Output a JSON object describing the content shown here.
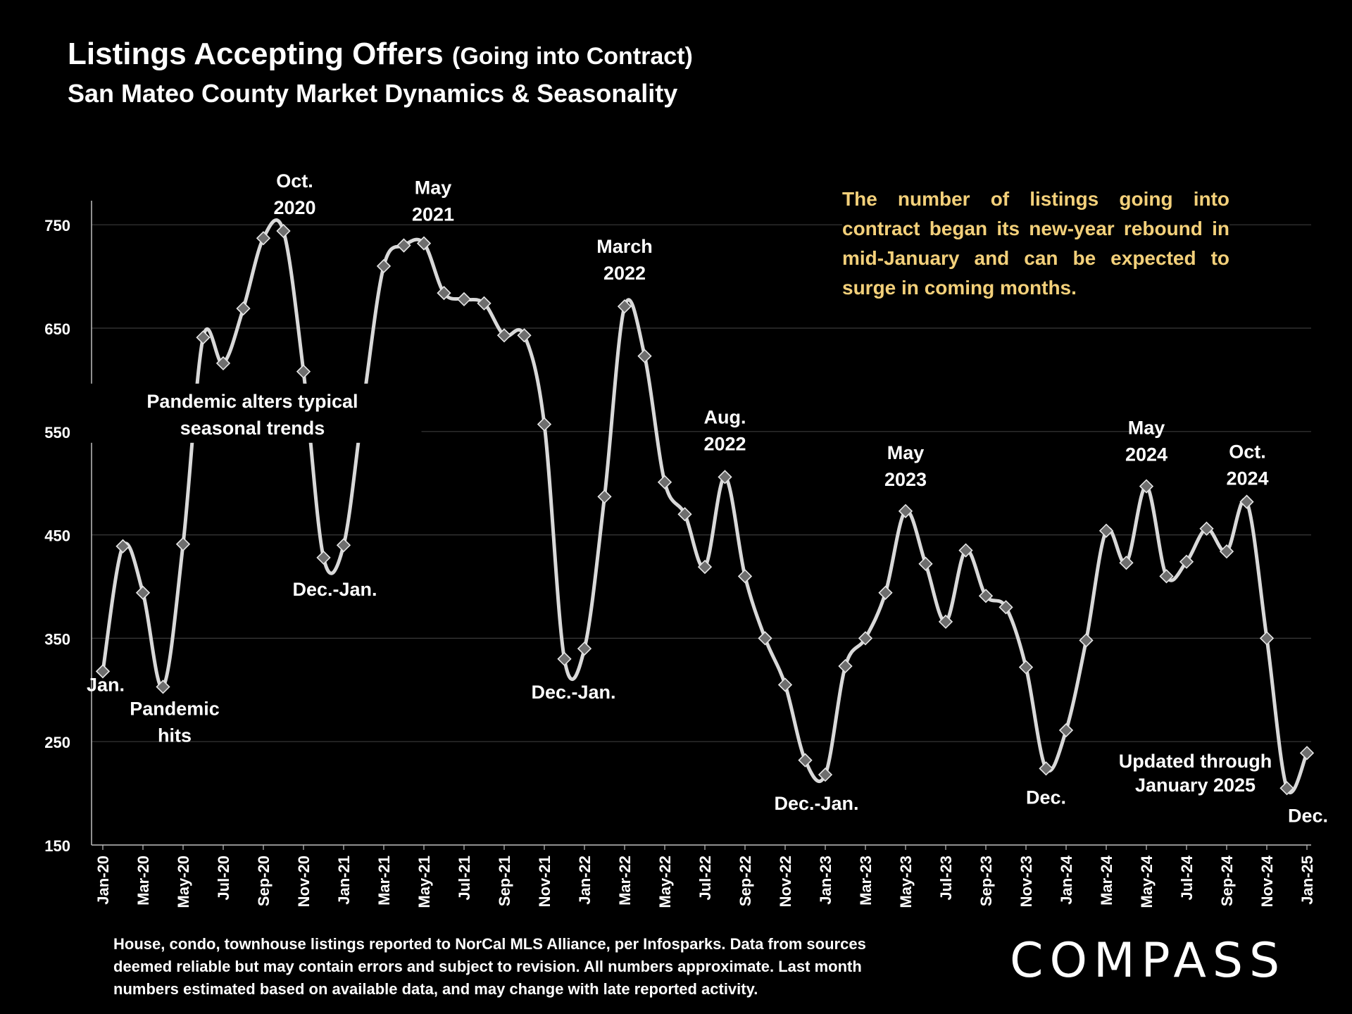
{
  "header": {
    "title": "Listings Accepting Offers",
    "title_paren": "(Going into Contract)",
    "subtitle": "San Mateo County Market Dynamics & Seasonality"
  },
  "insight": "The number of listings going into contract began its new-year rebound in mid-January and can be expected to surge in coming months.",
  "footnote": "House, condo, townhouse listings reported to NorCal MLS Alliance, per Infosparks. Data from sources deemed reliable but may contain errors and subject to revision. All numbers approximate. Last month numbers estimated based on available data, and may change with late reported activity.",
  "logo": "COMPASS",
  "colors": {
    "background": "#000000",
    "line": "#d9d9d9",
    "marker": "#6e6e6e",
    "insight_text": "#f3d07a",
    "grid": "#3a3a3a"
  },
  "chart_data": {
    "type": "line",
    "ylim": [
      150,
      770
    ],
    "yticks": [
      150,
      250,
      350,
      450,
      550,
      650,
      750
    ],
    "x_tick_labels": [
      "Jan-20",
      "Mar-20",
      "May-20",
      "Jul-20",
      "Sep-20",
      "Nov-20",
      "Jan-21",
      "Mar-21",
      "May-21",
      "Jul-21",
      "Sep-21",
      "Nov-21",
      "Jan-22",
      "Mar-22",
      "May-22",
      "Jul-22",
      "Sep-22",
      "Nov-22",
      "Jan-23",
      "Mar-23",
      "May-23",
      "Jul-23",
      "Sep-23",
      "Nov-23",
      "Jan-24",
      "Mar-24",
      "May-24",
      "Jul-24",
      "Sep-24",
      "Nov-24",
      "Jan-25"
    ],
    "grid": true,
    "series": [
      {
        "x": [
          "Jan-20",
          "Feb-20",
          "Mar-20",
          "Apr-20",
          "May-20",
          "Jun-20",
          "Jul-20",
          "Aug-20",
          "Sep-20",
          "Oct-20",
          "Nov-20",
          "Dec-20",
          "Jan-21",
          "Feb-21",
          "Mar-21",
          "Apr-21",
          "May-21",
          "Jun-21",
          "Jul-21",
          "Aug-21",
          "Sep-21",
          "Oct-21",
          "Nov-21",
          "Dec-21",
          "Jan-22",
          "Feb-22",
          "Mar-22",
          "Apr-22",
          "May-22",
          "Jun-22",
          "Jul-22",
          "Aug-22",
          "Sep-22",
          "Oct-22",
          "Nov-22",
          "Dec-22",
          "Jan-23",
          "Feb-23",
          "Mar-23",
          "Apr-23",
          "May-23",
          "Jun-23",
          "Jul-23",
          "Aug-23",
          "Sep-23",
          "Oct-23",
          "Nov-23",
          "Dec-23",
          "Jan-24",
          "Feb-24",
          "Mar-24",
          "Apr-24",
          "May-24",
          "Jun-24",
          "Jul-24",
          "Aug-24",
          "Sep-24",
          "Oct-24",
          "Nov-24",
          "Dec-24",
          "Jan-25"
        ],
        "values": [
          318,
          439,
          394,
          303,
          441,
          641,
          616,
          669,
          737,
          744,
          608,
          428,
          440,
          580,
          710,
          730,
          732,
          684,
          678,
          674,
          643,
          643,
          557,
          330,
          340,
          487,
          671,
          623,
          501,
          470,
          419,
          506,
          410,
          350,
          305,
          232,
          218,
          323,
          350,
          394,
          473,
          422,
          366,
          435,
          391,
          380,
          322,
          224,
          261,
          348,
          454,
          423,
          497,
          410,
          424,
          456,
          434,
          482,
          350,
          205,
          239
        ]
      }
    ],
    "annotations": [
      {
        "text": [
          "Jan."
        ],
        "x": "Jan-20",
        "y": 318
      },
      {
        "text": [
          "Pandemic",
          "hits"
        ],
        "x": "Mar-20",
        "y": 303
      },
      {
        "text": [
          "Oct.",
          "2020"
        ],
        "x": "Oct-20",
        "y": 744
      },
      {
        "text": [
          "Pandemic alters typical",
          "seasonal trends"
        ],
        "x": "Oct-20",
        "y": 550
      },
      {
        "text": [
          "Dec.-Jan."
        ],
        "x": "Dec-20",
        "y": 428
      },
      {
        "text": [
          "May",
          "2021"
        ],
        "x": "May-21",
        "y": 732
      },
      {
        "text": [
          "Dec.-Jan."
        ],
        "x": "Dec-21",
        "y": 330
      },
      {
        "text": [
          "March",
          "2022"
        ],
        "x": "Mar-22",
        "y": 671
      },
      {
        "text": [
          "Aug.",
          "2022"
        ],
        "x": "Aug-22",
        "y": 506
      },
      {
        "text": [
          "Dec.-Jan."
        ],
        "x": "Dec-22",
        "y": 218
      },
      {
        "text": [
          "May",
          "2023"
        ],
        "x": "May-23",
        "y": 473
      },
      {
        "text": [
          "Dec."
        ],
        "x": "Dec-23",
        "y": 224
      },
      {
        "text": [
          "May",
          "2024"
        ],
        "x": "May-24",
        "y": 497
      },
      {
        "text": [
          "Updated through",
          "January 2025"
        ],
        "x": "Aug-24",
        "y": 250
      },
      {
        "text": [
          "Oct.",
          "2024"
        ],
        "x": "Oct-24",
        "y": 482
      },
      {
        "text": [
          "Dec."
        ],
        "x": "Dec-24",
        "y": 205
      }
    ]
  }
}
